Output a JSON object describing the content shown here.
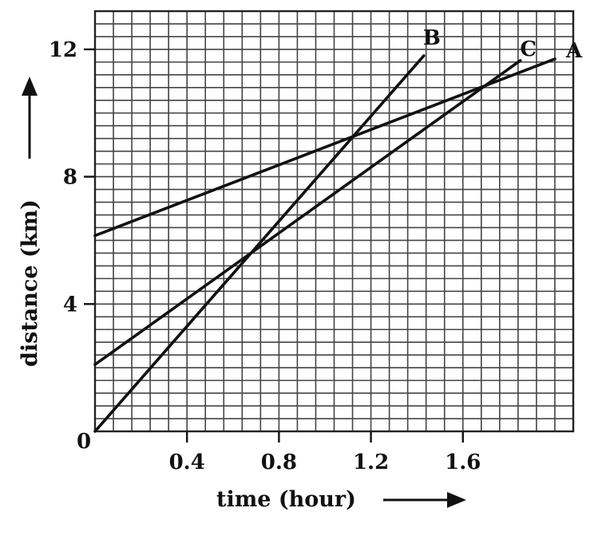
{
  "chart_data": {
    "type": "line",
    "title": "",
    "xlabel": "time (hour)",
    "ylabel": "distance (km)",
    "xlim": [
      0,
      2.08
    ],
    "ylim": [
      0,
      13.2
    ],
    "x_ticks": [
      0.4,
      0.8,
      1.2,
      1.6
    ],
    "x_tick_labels": [
      "0.4",
      "0.8",
      "1.2",
      "1.6"
    ],
    "y_ticks": [
      4,
      8,
      12
    ],
    "y_tick_labels": [
      "4",
      "8",
      "12"
    ],
    "origin_label": "0",
    "grid": true,
    "grid_step_x": 0.08,
    "grid_step_y": 0.4,
    "series": [
      {
        "name": "A",
        "x": [
          0,
          2.0
        ],
        "y": [
          6.15,
          11.7
        ]
      },
      {
        "name": "B",
        "x": [
          0,
          1.43
        ],
        "y": [
          0,
          11.8
        ]
      },
      {
        "name": "C",
        "x": [
          0,
          1.85
        ],
        "y": [
          2.1,
          11.65
        ]
      }
    ]
  }
}
